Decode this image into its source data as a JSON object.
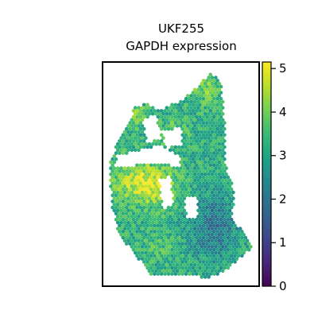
{
  "chart_data": {
    "type": "scatter",
    "subtype": "spatial-transcriptomics hex-spot map",
    "title_lines": [
      "UKF255",
      "GAPDH expression"
    ],
    "xlabel": "",
    "ylabel": "",
    "axis_ticks_visible": false,
    "grid": false,
    "legend": "none",
    "colorbar": {
      "placement": "right",
      "colormap": "viridis",
      "range": [
        0,
        5.15
      ],
      "ticks": [
        0,
        1,
        2,
        3,
        4,
        5
      ],
      "tick_labels": [
        "0",
        "1",
        "2",
        "3",
        "4",
        "5"
      ]
    },
    "colormap_stops": [
      "#440154",
      "#482878",
      "#3e4989",
      "#31688e",
      "#26828e",
      "#1f9e89",
      "#35b779",
      "#6ece58",
      "#b5de2b",
      "#fde725"
    ],
    "approximate_mean_value": 3.2,
    "regions": [
      {
        "name": "upper-left lobe",
        "typical_value": 3.6
      },
      {
        "name": "upper-right lobe",
        "typical_value": 3.7
      },
      {
        "name": "left-center high region",
        "typical_value": 4.4
      },
      {
        "name": "right-center lower region",
        "typical_value": 2.3
      },
      {
        "name": "bottom region",
        "typical_value": 3.0
      }
    ]
  }
}
